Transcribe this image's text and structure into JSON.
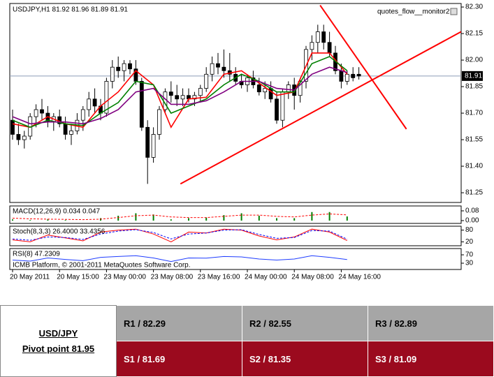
{
  "chart_data": {
    "type": "candlestick",
    "title": "USDJPY,H1 81.92 81.96 81.89 81.91",
    "watermark": "quotes_flow__monitor2",
    "categories": [
      "20 May 2011",
      null,
      null,
      null,
      null,
      null,
      null,
      null,
      "20 May 15:00",
      null,
      null,
      null,
      null,
      null,
      null,
      null,
      "23 May 00:00",
      null,
      null,
      null,
      null,
      null,
      null,
      null,
      "23 May 08:00",
      null,
      null,
      null,
      null,
      null,
      null,
      null,
      "23 May 16:00",
      null,
      null,
      null,
      null,
      null,
      null,
      null,
      "24 May 00:00",
      null,
      null,
      null,
      null,
      null,
      null,
      null,
      "24 May 08:00",
      null,
      null,
      null,
      null,
      null,
      null,
      null,
      "24 May 16:00",
      null,
      null,
      null
    ],
    "open": [
      81.66,
      81.58,
      81.55,
      81.57,
      81.68,
      81.72,
      81.7,
      81.65,
      81.68,
      81.64,
      81.58,
      81.6,
      81.66,
      81.72,
      81.78,
      81.74,
      81.7,
      81.88,
      81.96,
      81.94,
      81.98,
      81.95,
      81.88,
      81.62,
      81.45,
      81.58,
      81.72,
      81.82,
      81.8,
      81.78,
      81.8,
      81.78,
      81.8,
      81.84,
      81.92,
      81.98,
      81.96,
      81.94,
      81.92,
      81.88,
      81.86,
      81.9,
      81.86,
      81.82,
      81.84,
      81.78,
      81.66,
      81.82,
      81.86,
      81.8,
      81.88,
      82.06,
      82.1,
      82.16,
      82.1,
      82.04,
      81.94,
      81.88,
      81.92,
      81.92
    ],
    "high": [
      81.72,
      81.64,
      81.6,
      81.7,
      81.75,
      81.78,
      81.74,
      81.7,
      81.72,
      81.68,
      81.64,
      81.7,
      81.74,
      81.82,
      81.84,
      81.78,
      81.9,
      82.0,
      82.02,
      82.0,
      82.0,
      82.0,
      81.9,
      81.66,
      81.62,
      81.74,
      81.84,
      81.88,
      81.86,
      81.84,
      81.84,
      81.82,
      81.86,
      81.96,
      82.02,
      82.04,
      82.06,
      82.04,
      81.96,
      81.92,
      81.92,
      81.94,
      81.9,
      81.88,
      81.88,
      81.82,
      81.84,
      81.88,
      81.9,
      81.9,
      82.08,
      82.14,
      82.2,
      82.2,
      82.16,
      82.08,
      81.98,
      81.94,
      81.96,
      81.96
    ],
    "low": [
      81.55,
      81.52,
      81.5,
      81.55,
      81.62,
      81.66,
      81.62,
      81.6,
      81.62,
      81.55,
      81.52,
      81.58,
      81.6,
      81.68,
      81.7,
      81.66,
      81.68,
      81.84,
      81.9,
      81.88,
      81.92,
      81.86,
      81.6,
      81.3,
      81.42,
      81.55,
      81.7,
      81.76,
      81.74,
      81.74,
      81.76,
      81.74,
      81.76,
      81.82,
      81.88,
      81.92,
      81.9,
      81.88,
      81.86,
      81.84,
      81.82,
      81.84,
      81.8,
      81.78,
      81.76,
      81.64,
      81.62,
      81.78,
      81.72,
      81.76,
      81.84,
      82.0,
      82.04,
      82.06,
      82.02,
      81.92,
      81.84,
      81.86,
      81.88,
      81.89
    ],
    "close": [
      81.58,
      81.55,
      81.57,
      81.68,
      81.72,
      81.7,
      81.65,
      81.68,
      81.64,
      81.58,
      81.6,
      81.66,
      81.72,
      81.78,
      81.74,
      81.7,
      81.88,
      81.96,
      81.94,
      81.98,
      81.95,
      81.88,
      81.62,
      81.45,
      81.58,
      81.72,
      81.82,
      81.8,
      81.78,
      81.8,
      81.78,
      81.8,
      81.84,
      81.92,
      81.98,
      81.96,
      81.94,
      81.92,
      81.88,
      81.86,
      81.9,
      81.86,
      81.82,
      81.84,
      81.78,
      81.66,
      81.82,
      81.86,
      81.8,
      81.88,
      82.06,
      82.1,
      82.16,
      82.1,
      82.04,
      81.94,
      81.88,
      81.92,
      81.9,
      81.91
    ],
    "ylim": [
      81.195,
      82.32
    ],
    "yticks": [
      {
        "value": 82.3,
        "label": "82.30"
      },
      82.15,
      {
        "value": 82,
        "label": "82.00"
      },
      81.85,
      {
        "value": 81.7,
        "label": "81.70"
      },
      81.55,
      {
        "value": 81.4,
        "label": "81.40"
      },
      81.25
    ],
    "price_line": {
      "value": 81.91,
      "color": "#8c9bb8"
    },
    "series": [
      {
        "color": "#ff0000",
        "x": [
          0,
          3,
          6,
          9,
          12,
          15,
          18,
          21,
          24,
          27,
          30,
          33,
          36,
          39,
          42,
          45,
          48,
          51,
          54,
          57
        ],
        "values": [
          81.64,
          81.62,
          81.68,
          81.64,
          81.62,
          81.74,
          81.82,
          81.94,
          81.86,
          81.62,
          81.78,
          81.79,
          81.92,
          81.94,
          81.87,
          81.8,
          81.82,
          82.04,
          82.04,
          81.92
        ]
      },
      {
        "color": "#008000",
        "x": [
          0,
          3,
          6,
          9,
          12,
          15,
          18,
          21,
          24,
          27,
          30,
          33,
          36,
          39,
          42,
          45,
          48,
          51,
          54,
          57
        ],
        "values": [
          81.66,
          81.62,
          81.66,
          81.64,
          81.63,
          81.7,
          81.76,
          81.88,
          81.86,
          81.7,
          81.74,
          81.78,
          81.86,
          81.92,
          81.88,
          81.82,
          81.82,
          81.98,
          82.02,
          81.94
        ]
      },
      {
        "color": "#800080",
        "x": [
          0,
          3,
          6,
          9,
          12,
          15,
          18,
          21,
          24,
          27,
          30,
          33,
          36,
          39,
          42,
          45,
          48,
          51,
          54,
          57
        ],
        "values": [
          81.68,
          81.64,
          81.65,
          81.65,
          81.64,
          81.67,
          81.72,
          81.82,
          81.84,
          81.75,
          81.75,
          81.77,
          81.82,
          81.88,
          81.88,
          81.84,
          81.83,
          81.92,
          81.96,
          81.93
        ]
      }
    ],
    "trendlines": [
      {
        "color": "#ff0000",
        "x": [
          28.6,
          76.4
        ],
        "values": [
          81.3,
          82.16
        ]
      },
      {
        "color": "#ff0000",
        "x": [
          52.4,
          67.1
        ],
        "values": [
          82.31,
          81.61
        ]
      }
    ],
    "panels": [
      {
        "title": "MACD(12,26,9) 0.034 0.047",
        "ylim": [
          -0.023,
          0.12
        ],
        "yticks": [
          {
            "value": 0,
            "label": "0.00"
          },
          0.08
        ],
        "series": [
          {
            "type": "bar",
            "color": "#008000",
            "x": [
              0,
              3,
              6,
              9,
              12,
              15,
              18,
              21,
              24,
              27,
              30,
              33,
              36,
              39,
              42,
              45,
              48,
              51,
              54,
              57
            ],
            "values": [
              0.01,
              0.005,
              0.01,
              0.005,
              0,
              0.02,
              0.04,
              0.06,
              0.05,
              0.01,
              0.02,
              0.025,
              0.045,
              0.06,
              0.04,
              0.02,
              0.02,
              0.07,
              0.07,
              0.034
            ]
          },
          {
            "type": "line",
            "dash": true,
            "color": "#ff0000",
            "x": [
              0,
              3,
              6,
              9,
              12,
              15,
              18,
              21,
              24,
              27,
              30,
              33,
              36,
              39,
              42,
              45,
              48,
              51,
              54,
              57
            ],
            "values": [
              0.02,
              0.015,
              0.012,
              0.01,
              0.008,
              0.012,
              0.025,
              0.04,
              0.045,
              0.03,
              0.025,
              0.025,
              0.035,
              0.045,
              0.045,
              0.035,
              0.03,
              0.045,
              0.055,
              0.047
            ]
          }
        ]
      },
      {
        "title": "Stoch(8,3,3) 26.4000 33.4356",
        "ylim": [
          0,
          100
        ],
        "yticks": [
          20,
          80
        ],
        "series": [
          {
            "type": "line",
            "color": "#ff0000",
            "x": [
              0,
              3,
              6,
              9,
              12,
              15,
              18,
              21,
              24,
              27,
              30,
              33,
              36,
              39,
              42,
              45,
              48,
              51,
              54,
              57
            ],
            "values": [
              30,
              20,
              55,
              40,
              25,
              70,
              80,
              85,
              60,
              20,
              70,
              65,
              85,
              80,
              50,
              30,
              45,
              85,
              70,
              26.4
            ]
          },
          {
            "type": "line",
            "dash": true,
            "color": "#0000ff",
            "x": [
              0,
              3,
              6,
              9,
              12,
              15,
              18,
              21,
              24,
              27,
              30,
              33,
              36,
              39,
              42,
              45,
              48,
              51,
              54,
              57
            ],
            "values": [
              35,
              28,
              45,
              42,
              32,
              60,
              75,
              82,
              68,
              35,
              60,
              65,
              80,
              82,
              58,
              38,
              42,
              78,
              75,
              33.4356
            ]
          }
        ]
      },
      {
        "title": "RSI(8) 47.2309",
        "footer": "ICMB Platform, © 2001-2011 MetaQuotes Software Corp.",
        "ylim": [
          0,
          100
        ],
        "yticks": [
          30,
          70
        ],
        "series": [
          {
            "type": "line",
            "color": "#1e3cff",
            "x": [
              0,
              3,
              6,
              9,
              12,
              15,
              18,
              21,
              24,
              27,
              30,
              33,
              36,
              39,
              42,
              45,
              48,
              51,
              54,
              57
            ],
            "values": [
              45,
              40,
              55,
              48,
              42,
              58,
              62,
              66,
              55,
              38,
              55,
              54,
              62,
              60,
              50,
              45,
              50,
              66,
              58,
              47.2309
            ]
          }
        ]
      }
    ]
  },
  "table": {
    "title": "USD/JPY",
    "subtitle": "Pivot point 81.95",
    "rows": [
      [
        "R1 / 82.29",
        "R2 / 82.55",
        "R3 / 82.89"
      ],
      [
        "S1 / 81.69",
        "S2 / 81.35",
        "S3 / 81.09"
      ]
    ]
  }
}
